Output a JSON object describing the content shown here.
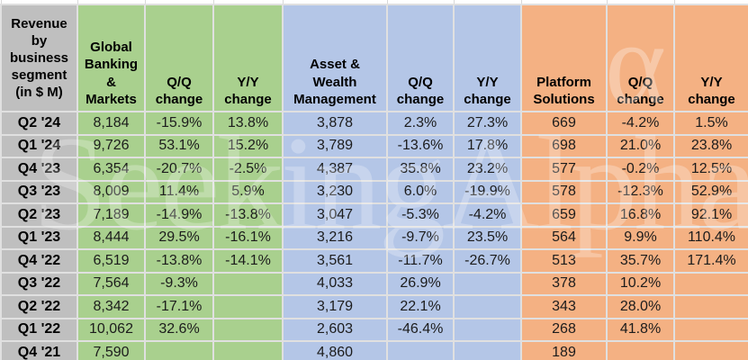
{
  "watermark": {
    "text": "SeekingAlpha",
    "symbol": "α"
  },
  "palette": {
    "segment_colors": [
      "#A9D08E",
      "#B4C6E7",
      "#F4B183"
    ],
    "row_label_bg": "#BFBFBF",
    "grid_line": "#E0E0E0"
  },
  "chart_data": {
    "type": "table",
    "title": "Revenue by business segment (in $ M)",
    "corner_header": "Revenue by business segment (in $ M)",
    "corner_header_lines": "Revenue\nby\nbusiness\nsegment\n(in $ M)",
    "column_groups": [
      {
        "key": "gbm",
        "label": "Global Banking & Markets",
        "label_lines": "Global\nBanking\n&\nMarkets",
        "qq_header": "Q/Q\nchange",
        "yy_header": "Y/Y\nchange",
        "color": "#A9D08E"
      },
      {
        "key": "awm",
        "label": "Asset & Wealth Management",
        "label_lines": "Asset &\nWealth\nManagement",
        "qq_header": "Q/Q\nchange",
        "yy_header": "Y/Y\nchange",
        "color": "#B4C6E7"
      },
      {
        "key": "ps",
        "label": "Platform Solutions",
        "label_lines": "Platform\nSolutions",
        "qq_header": "Q/Q\nchange",
        "yy_header": "Y/Y\nchange",
        "color": "#F4B183"
      }
    ],
    "rows": [
      {
        "quarter": "Q2 '24",
        "cells": [
          "8,184",
          "-15.9%",
          "13.8%",
          "3,878",
          "2.3%",
          "27.3%",
          "669",
          "-4.2%",
          "1.5%"
        ]
      },
      {
        "quarter": "Q1 '24",
        "cells": [
          "9,726",
          "53.1%",
          "15.2%",
          "3,789",
          "-13.6%",
          "17.8%",
          "698",
          "21.0%",
          "23.8%"
        ]
      },
      {
        "quarter": "Q4 '23",
        "cells": [
          "6,354",
          "-20.7%",
          "-2.5%",
          "4,387",
          "35.8%",
          "23.2%",
          "577",
          "-0.2%",
          "12.5%"
        ]
      },
      {
        "quarter": "Q3 '23",
        "cells": [
          "8,009",
          "11.4%",
          "5.9%",
          "3,230",
          "6.0%",
          "-19.9%",
          "578",
          "-12.3%",
          "52.9%"
        ]
      },
      {
        "quarter": "Q2 '23",
        "cells": [
          "7,189",
          "-14.9%",
          "-13.8%",
          "3,047",
          "-5.3%",
          "-4.2%",
          "659",
          "16.8%",
          "92.1%"
        ]
      },
      {
        "quarter": "Q1 '23",
        "cells": [
          "8,444",
          "29.5%",
          "-16.1%",
          "3,216",
          "-9.7%",
          "23.5%",
          "564",
          "9.9%",
          "110.4%"
        ]
      },
      {
        "quarter": "Q4 '22",
        "cells": [
          "6,519",
          "-13.8%",
          "-14.1%",
          "3,561",
          "-11.7%",
          "-26.7%",
          "513",
          "35.7%",
          "171.4%"
        ]
      },
      {
        "quarter": "Q3 '22",
        "cells": [
          "7,564",
          "-9.3%",
          "",
          "4,033",
          "26.9%",
          "",
          "378",
          "10.2%",
          ""
        ]
      },
      {
        "quarter": "Q2 '22",
        "cells": [
          "8,342",
          "-17.1%",
          "",
          "3,179",
          "22.1%",
          "",
          "343",
          "28.0%",
          ""
        ]
      },
      {
        "quarter": "Q1 '22",
        "cells": [
          "10,062",
          "32.6%",
          "",
          "2,603",
          "-46.4%",
          "",
          "268",
          "41.8%",
          ""
        ]
      },
      {
        "quarter": "Q4 '21",
        "cells": [
          "7,590",
          "",
          "",
          "4,860",
          "",
          "",
          "189",
          "",
          ""
        ]
      }
    ]
  }
}
